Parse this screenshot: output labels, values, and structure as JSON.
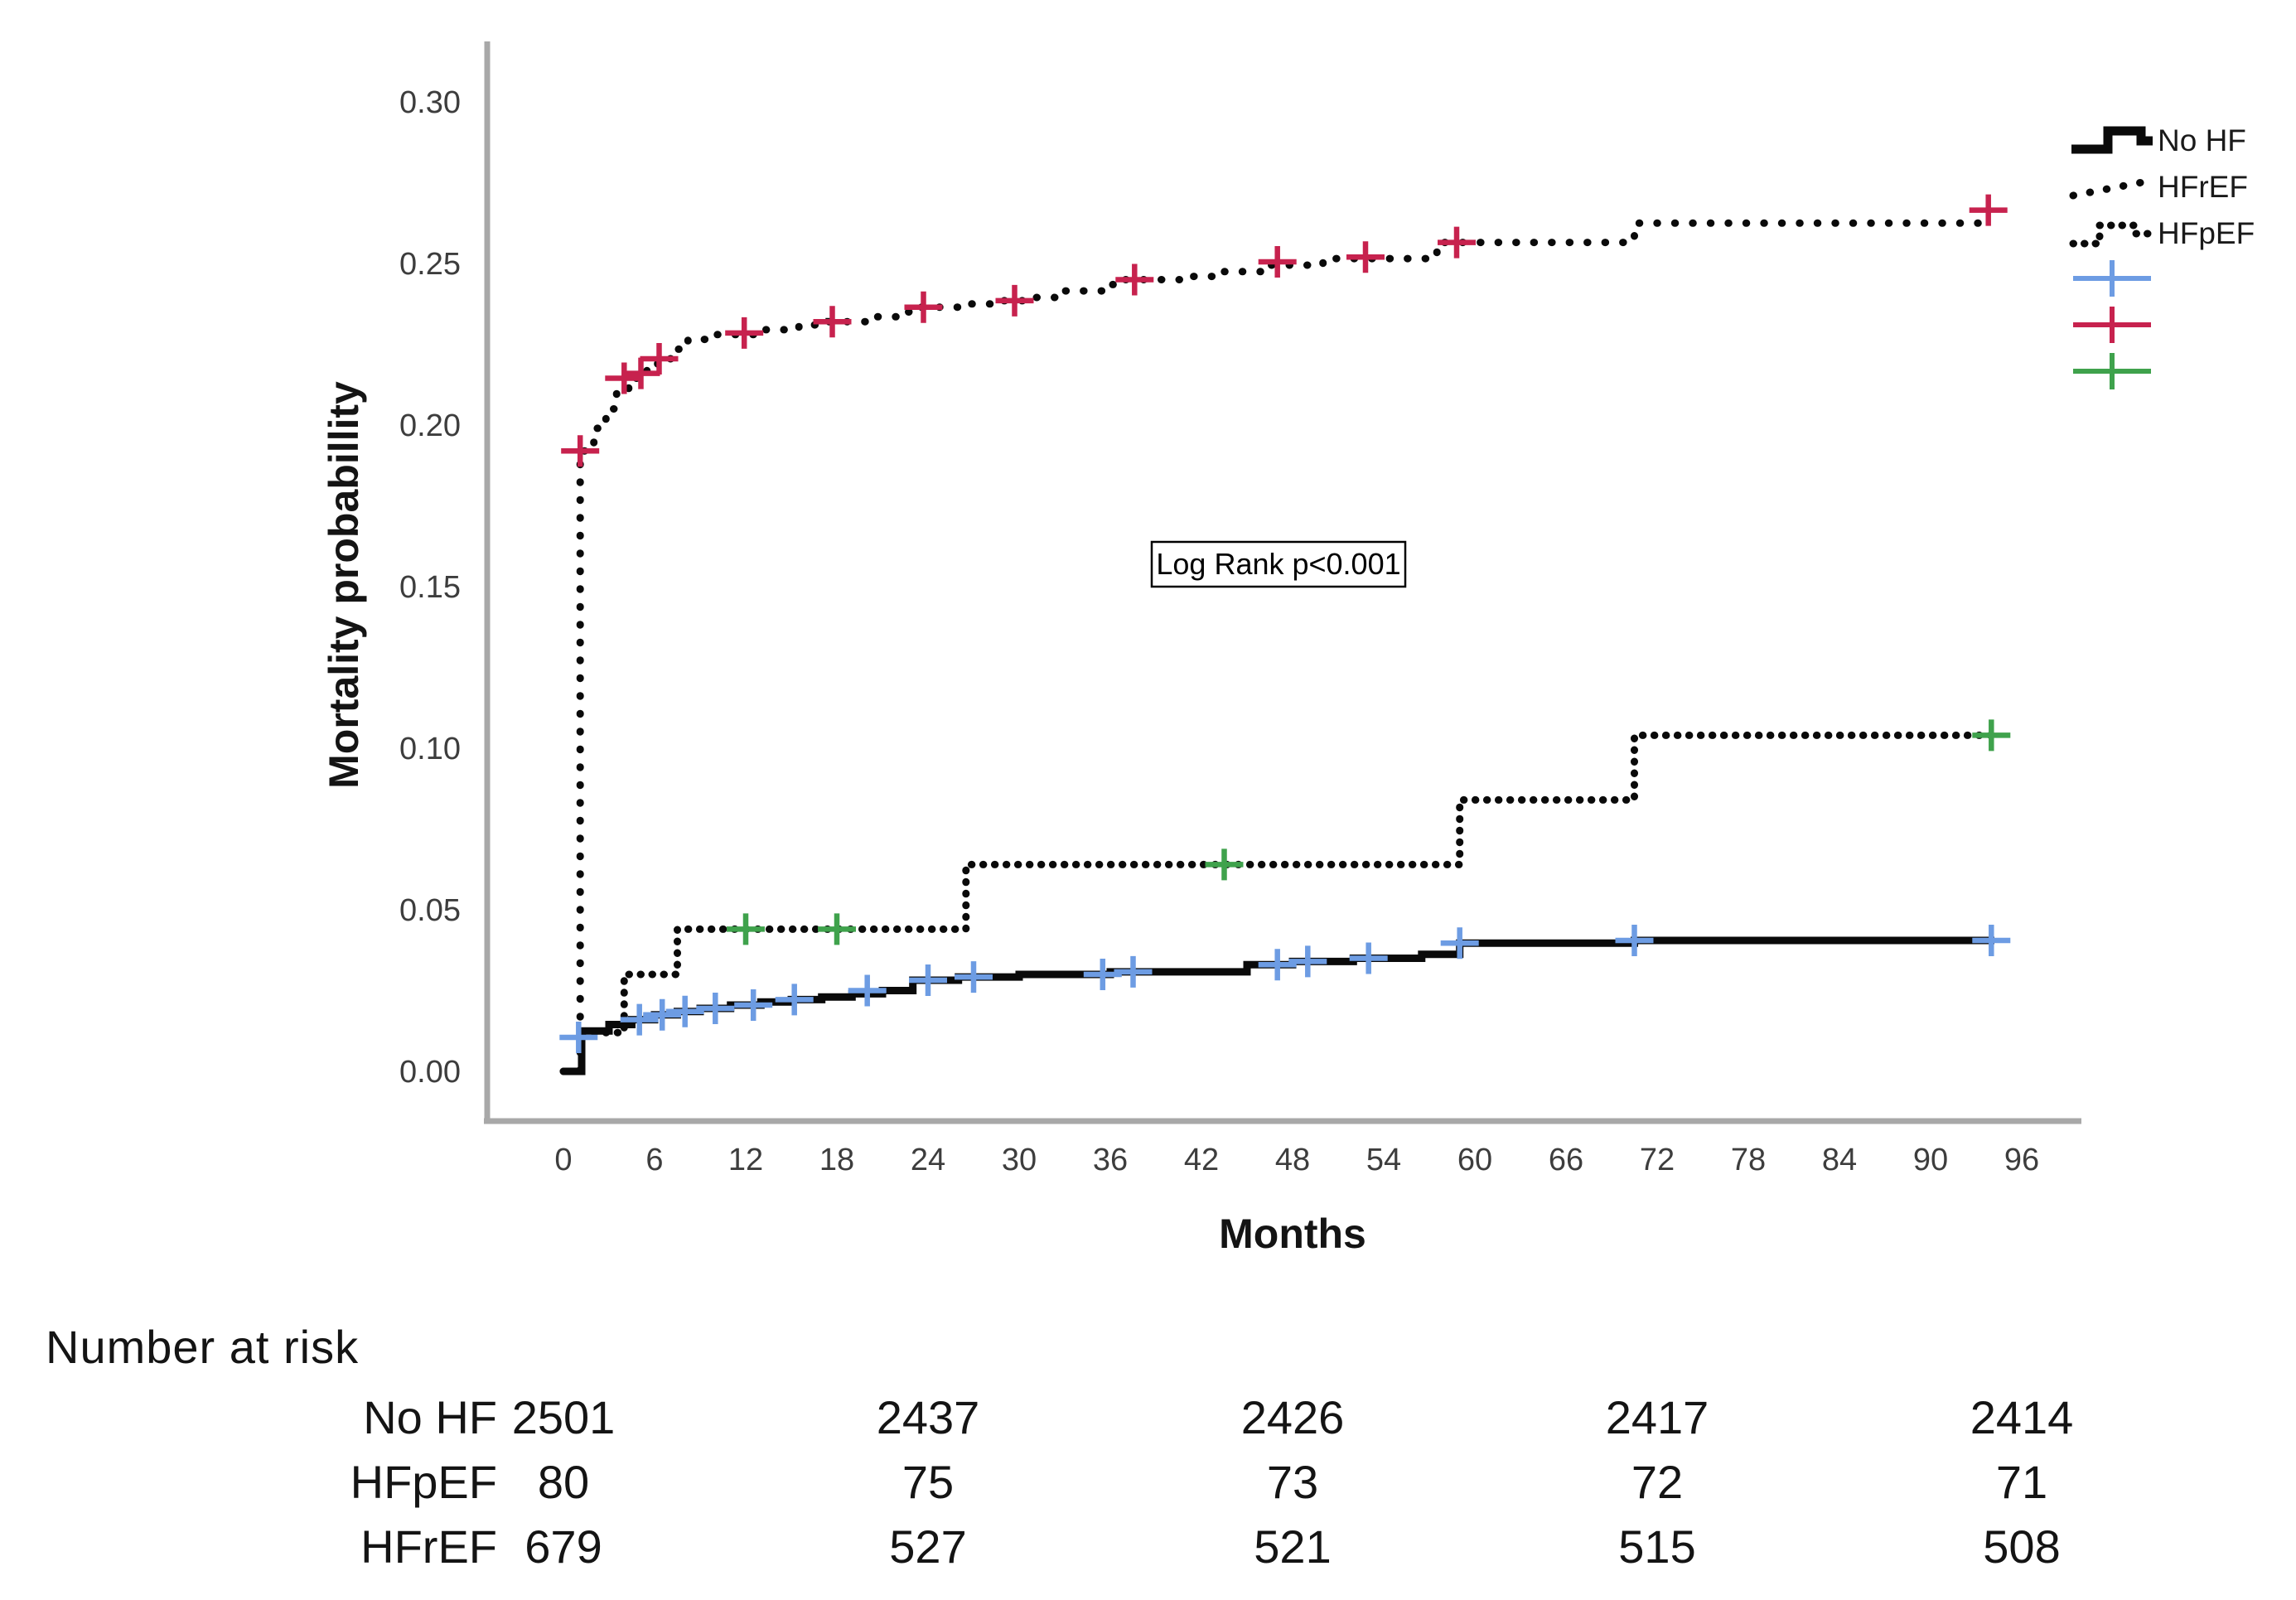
{
  "chart_data": {
    "type": "line",
    "subtype": "kaplan-meier-step",
    "title": "",
    "xlabel": "Months",
    "ylabel": "Mortality probabillity",
    "annotation": "Log Rank p<0.001",
    "xlim": [
      0,
      96
    ],
    "ylim": [
      0.0,
      0.3
    ],
    "x_ticks": [
      0,
      6,
      12,
      18,
      24,
      30,
      36,
      42,
      48,
      54,
      60,
      66,
      72,
      78,
      84,
      90,
      96
    ],
    "y_ticks": [
      "0.00",
      "0.05",
      "0.10",
      "0.15",
      "0.20",
      "0.25",
      "0.30"
    ],
    "grid": "off",
    "legend_position": "top-right",
    "axis_color": "#a8a8a8",
    "tick_color": "#3d3d3d",
    "series": [
      {
        "name": "HFrEF",
        "color": "#0a0a0a",
        "line_style": "dotted-sparse",
        "censor_color": "#c7224e",
        "end_month": 93.8,
        "steps": [
          [
            0,
            0
          ],
          [
            1.1,
            0.192
          ],
          [
            2,
            0.199
          ],
          [
            2.8,
            0.205
          ],
          [
            3.5,
            0.211
          ],
          [
            4.3,
            0.2145
          ],
          [
            5.5,
            0.217
          ],
          [
            6.2,
            0.2205
          ],
          [
            7.2,
            0.2235
          ],
          [
            8.2,
            0.2265
          ],
          [
            9.5,
            0.228
          ],
          [
            13,
            0.2295
          ],
          [
            15.5,
            0.231
          ],
          [
            17.5,
            0.232
          ],
          [
            20,
            0.2335
          ],
          [
            22,
            0.235
          ],
          [
            23.5,
            0.2365
          ],
          [
            26,
            0.2375
          ],
          [
            29,
            0.2385
          ],
          [
            31,
            0.2395
          ],
          [
            33,
            0.2415
          ],
          [
            35.5,
            0.2435
          ],
          [
            36.8,
            0.245
          ],
          [
            41,
            0.246
          ],
          [
            43.5,
            0.2475
          ],
          [
            46,
            0.2495
          ],
          [
            50,
            0.2515
          ],
          [
            57.5,
            0.2565
          ],
          [
            70.5,
            0.2625
          ]
        ],
        "censors": [
          [
            1.1,
            0.192
          ],
          [
            4,
            0.2145
          ],
          [
            5.1,
            0.216
          ],
          [
            6.3,
            0.2205
          ],
          [
            11.9,
            0.2285
          ],
          [
            17.7,
            0.232
          ],
          [
            23.7,
            0.2365
          ],
          [
            29.7,
            0.2385
          ],
          [
            37.6,
            0.245
          ],
          [
            47,
            0.2505
          ],
          [
            52.8,
            0.252
          ],
          [
            58.8,
            0.2565
          ],
          [
            93.8,
            0.2665
          ]
        ]
      },
      {
        "name": "HFpEF",
        "color": "#0a0a0a",
        "line_style": "dotted-dense",
        "censor_color": "#3fa24c",
        "end_month": 94.2,
        "steps": [
          [
            0,
            0
          ],
          [
            1.2,
            0.012
          ],
          [
            4,
            0.03
          ],
          [
            7.5,
            0.044
          ],
          [
            26.5,
            0.064
          ],
          [
            59,
            0.084
          ],
          [
            70.5,
            0.104
          ]
        ],
        "censors": [
          [
            12,
            0.044
          ],
          [
            18,
            0.044
          ],
          [
            43.5,
            0.064
          ],
          [
            94,
            0.104
          ]
        ]
      },
      {
        "name": "No HF",
        "color": "#0a0a0a",
        "line_style": "solid",
        "censor_color": "#6d9ce3",
        "end_month": 94.2,
        "steps": [
          [
            0,
            0
          ],
          [
            1.2,
            0.0125
          ],
          [
            3,
            0.0145
          ],
          [
            4.5,
            0.016
          ],
          [
            6,
            0.0175
          ],
          [
            7.5,
            0.0185
          ],
          [
            9,
            0.0195
          ],
          [
            11,
            0.0205
          ],
          [
            13,
            0.0215
          ],
          [
            15,
            0.0222
          ],
          [
            17,
            0.023
          ],
          [
            19,
            0.024
          ],
          [
            21,
            0.025
          ],
          [
            23,
            0.0282
          ],
          [
            26,
            0.0292
          ],
          [
            30,
            0.03
          ],
          [
            36,
            0.0308
          ],
          [
            45,
            0.033
          ],
          [
            48,
            0.034
          ],
          [
            52,
            0.035
          ],
          [
            56.5,
            0.0362
          ],
          [
            59,
            0.0397
          ],
          [
            70.5,
            0.0405
          ]
        ],
        "censors": [
          [
            1,
            0.0105
          ],
          [
            5,
            0.016
          ],
          [
            6.5,
            0.0175
          ],
          [
            8,
            0.0185
          ],
          [
            10,
            0.0195
          ],
          [
            12.5,
            0.0205
          ],
          [
            15.2,
            0.0222
          ],
          [
            20,
            0.025
          ],
          [
            24,
            0.0282
          ],
          [
            27,
            0.0292
          ],
          [
            35.5,
            0.03
          ],
          [
            37.5,
            0.0308
          ],
          [
            47,
            0.033
          ],
          [
            49,
            0.034
          ],
          [
            53,
            0.035
          ],
          [
            59,
            0.0397
          ],
          [
            70.5,
            0.0405
          ],
          [
            94,
            0.0405
          ]
        ]
      }
    ],
    "legend": [
      {
        "label": "No HF",
        "swatch": "solid-step",
        "color": "#0a0a0a"
      },
      {
        "label": "HFrEF",
        "swatch": "dots",
        "color": "#0a0a0a"
      },
      {
        "label": "HFpEF",
        "swatch": "dots-step",
        "color": "#0a0a0a"
      },
      {
        "label": "",
        "swatch": "censor",
        "color": "#6d9ce3"
      },
      {
        "label": "",
        "swatch": "censor",
        "color": "#c7224e"
      },
      {
        "label": "",
        "swatch": "censor",
        "color": "#3fa24c"
      }
    ]
  },
  "risk_table": {
    "heading": "Number at risk",
    "columns_months": [
      0,
      24,
      48,
      72,
      96
    ],
    "rows": [
      {
        "label": "No HF",
        "values": [
          2501,
          2437,
          2426,
          2417,
          2414
        ]
      },
      {
        "label": "HFpEF",
        "values": [
          80,
          75,
          73,
          72,
          71
        ]
      },
      {
        "label": "HFrEF",
        "values": [
          679,
          527,
          521,
          515,
          508
        ]
      }
    ]
  }
}
